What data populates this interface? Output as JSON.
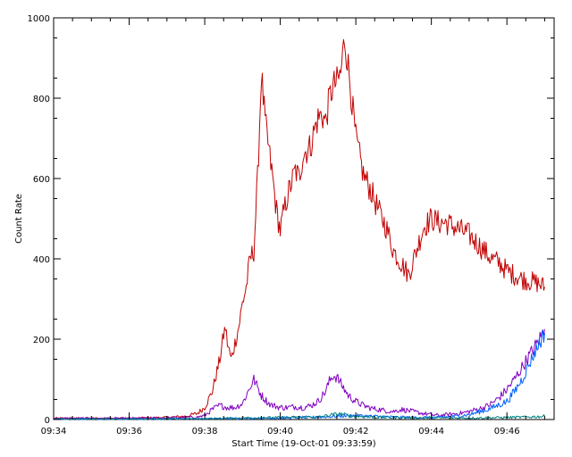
{
  "chart_data": {
    "type": "line",
    "xlabel": "Start Time (19-Oct-01 09:33:59)",
    "ylabel": "Count Rate",
    "x_unit": "minutes after 09:34",
    "xlim": [
      0,
      13.25
    ],
    "ylim": [
      0,
      1000
    ],
    "grid": false,
    "x_ticks": [
      {
        "v": 0,
        "label": "09:34"
      },
      {
        "v": 2,
        "label": "09:36"
      },
      {
        "v": 4,
        "label": "09:38"
      },
      {
        "v": 6,
        "label": "09:40"
      },
      {
        "v": 8,
        "label": "09:42"
      },
      {
        "v": 10,
        "label": "09:44"
      },
      {
        "v": 12,
        "label": "09:46"
      }
    ],
    "y_ticks": [
      {
        "v": 0,
        "label": "0"
      },
      {
        "v": 200,
        "label": "200"
      },
      {
        "v": 400,
        "label": "400"
      },
      {
        "v": 600,
        "label": "600"
      },
      {
        "v": 800,
        "label": "800"
      },
      {
        "v": 1000,
        "label": "1000"
      }
    ],
    "series": [
      {
        "color": "#c00000",
        "x": [
          0,
          1,
          2,
          3,
          3.5,
          3.8,
          4.0,
          4.2,
          4.4,
          4.5,
          4.55,
          4.6,
          4.7,
          4.9,
          5.0,
          5.1,
          5.2,
          5.3,
          5.4,
          5.5,
          5.6,
          5.8,
          5.9,
          6.0,
          6.1,
          6.2,
          6.3,
          6.4,
          6.5,
          6.6,
          6.8,
          6.9,
          7.0,
          7.1,
          7.2,
          7.3,
          7.4,
          7.5,
          7.6,
          7.7,
          7.8,
          8.0,
          8.2,
          8.4,
          8.6,
          8.8,
          9.0,
          9.2,
          9.4,
          9.6,
          9.8,
          10.0,
          10.2,
          10.4,
          10.6,
          10.8,
          11.0,
          11.2,
          11.4,
          11.6,
          11.8,
          12.0,
          12.2,
          12.4,
          12.6,
          12.8,
          13.0
        ],
        "y": [
          3,
          3,
          3,
          5,
          8,
          15,
          30,
          70,
          150,
          210,
          230,
          190,
          150,
          230,
          290,
          330,
          400,
          420,
          600,
          860,
          740,
          600,
          520,
          470,
          520,
          560,
          590,
          620,
          600,
          660,
          680,
          720,
          750,
          760,
          740,
          800,
          830,
          840,
          860,
          950,
          880,
          700,
          610,
          570,
          520,
          480,
          420,
          390,
          360,
          420,
          480,
          500,
          490,
          490,
          480,
          470,
          460,
          440,
          420,
          400,
          390,
          370,
          360,
          350,
          345,
          340,
          330
        ]
      },
      {
        "color": "#8000c0",
        "x": [
          0,
          1,
          2,
          3,
          3.8,
          4.0,
          4.2,
          4.4,
          4.6,
          4.8,
          5.0,
          5.1,
          5.2,
          5.3,
          5.4,
          5.5,
          5.6,
          5.7,
          5.8,
          6.0,
          6.2,
          6.4,
          6.6,
          6.8,
          7.0,
          7.2,
          7.3,
          7.4,
          7.5,
          7.6,
          7.7,
          7.8,
          8.0,
          8.2,
          8.4,
          8.6,
          8.8,
          9.0,
          9.2,
          9.4,
          9.6,
          9.8,
          10.0,
          10.2,
          10.4,
          10.6,
          10.8,
          11.0,
          11.2,
          11.4,
          11.6,
          11.8,
          12.0,
          12.2,
          12.4,
          12.6,
          12.8,
          13.0
        ],
        "y": [
          3,
          3,
          3,
          4,
          6,
          10,
          25,
          35,
          30,
          30,
          40,
          60,
          80,
          100,
          80,
          60,
          50,
          40,
          35,
          30,
          30,
          32,
          30,
          34,
          45,
          70,
          95,
          110,
          105,
          90,
          75,
          60,
          45,
          35,
          28,
          25,
          22,
          20,
          25,
          22,
          18,
          15,
          12,
          10,
          12,
          14,
          16,
          20,
          25,
          30,
          40,
          55,
          75,
          100,
          130,
          160,
          190,
          225
        ]
      },
      {
        "color": "#0060ff",
        "x": [
          0,
          2,
          4,
          5,
          6,
          7,
          8,
          9,
          10,
          10.5,
          11,
          11.5,
          12,
          12.2,
          12.4,
          12.6,
          12.8,
          13.0
        ],
        "y": [
          1,
          1,
          2,
          3,
          4,
          6,
          10,
          6,
          5,
          7,
          12,
          25,
          45,
          70,
          100,
          140,
          180,
          215
        ]
      },
      {
        "color": "#008080",
        "x": [
          0,
          2,
          4,
          5,
          6,
          7,
          7.4,
          7.6,
          7.8,
          8.0,
          8.5,
          9.0,
          10.0,
          11.0,
          12.0,
          12.5,
          13.0
        ],
        "y": [
          1,
          1,
          2,
          4,
          5,
          6,
          12,
          14,
          10,
          8,
          6,
          5,
          4,
          4,
          5,
          6,
          8
        ]
      }
    ]
  }
}
